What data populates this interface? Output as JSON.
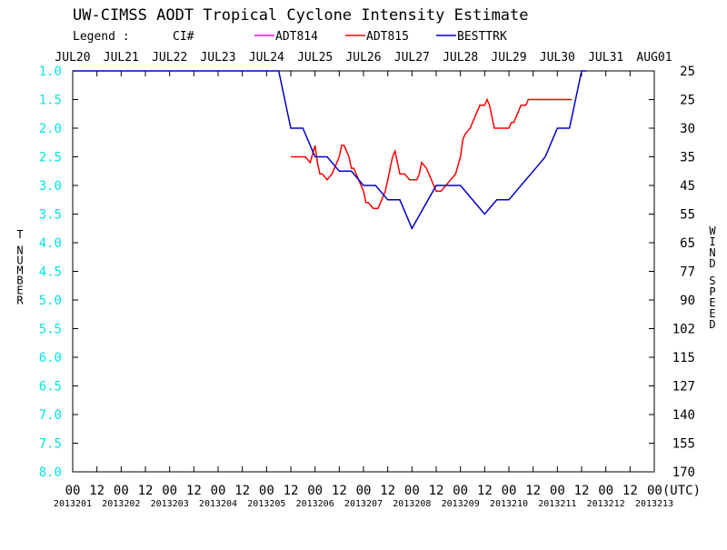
{
  "chart_data": {
    "type": "line",
    "title": "UW-CIMSS AODT Tropical Cyclone Intensity Estimate",
    "legend_label": "Legend :",
    "legend_ci": "CI#",
    "series": [
      {
        "name": "ADT814",
        "color": "#ff00ff",
        "x": [],
        "y": []
      },
      {
        "name": "ADT815",
        "color": "#ff0000",
        "x": [
          4.5,
          4.8,
          4.9,
          5.0,
          5.05,
          5.1,
          5.15,
          5.25,
          5.35,
          5.5,
          5.55,
          5.6,
          5.65,
          5.7,
          5.75,
          5.8,
          5.95,
          6.0,
          6.05,
          6.1,
          6.2,
          6.25,
          6.3,
          6.35,
          6.45,
          6.5,
          6.55,
          6.6,
          6.65,
          6.75,
          6.85,
          6.95,
          7.0,
          7.05,
          7.1,
          7.15,
          7.2,
          7.3,
          7.4,
          7.45,
          7.5,
          7.55,
          7.6,
          7.7,
          7.8,
          7.9,
          8.0,
          8.05,
          8.1,
          8.2,
          8.3,
          8.4,
          8.5,
          8.55,
          8.6,
          8.65,
          8.7,
          8.8,
          8.9,
          9.0,
          9.05,
          9.1,
          9.15,
          9.2,
          9.25,
          9.3,
          9.35,
          9.4,
          9.5,
          9.55,
          9.6,
          9.65,
          9.7,
          9.75,
          9.8,
          9.9,
          10.0,
          10.05,
          10.1,
          10.2,
          10.3
        ],
        "y": [
          2.5,
          2.5,
          2.6,
          2.3,
          2.6,
          2.8,
          2.8,
          2.9,
          2.8,
          2.5,
          2.3,
          2.3,
          2.4,
          2.5,
          2.7,
          2.7,
          3.0,
          3.1,
          3.3,
          3.3,
          3.4,
          3.4,
          3.4,
          3.3,
          3.1,
          2.9,
          2.7,
          2.5,
          2.4,
          2.8,
          2.8,
          2.9,
          2.9,
          2.9,
          2.9,
          2.8,
          2.6,
          2.7,
          2.9,
          3.0,
          3.1,
          3.1,
          3.1,
          3.0,
          2.9,
          2.8,
          2.5,
          2.2,
          2.1,
          2.0,
          1.8,
          1.6,
          1.6,
          1.5,
          1.6,
          1.8,
          2.0,
          2.0,
          2.0,
          2.0,
          1.9,
          1.9,
          1.8,
          1.7,
          1.6,
          1.6,
          1.6,
          1.5,
          1.5,
          1.5,
          1.5,
          1.5,
          1.5,
          1.5,
          1.5,
          1.5,
          1.5,
          1.5,
          1.5,
          1.5,
          1.5
        ]
      },
      {
        "name": "BESTTRK",
        "color": "#0000cc",
        "x": [
          0,
          4.25,
          4.5,
          4.75,
          5.0,
          5.25,
          5.5,
          5.75,
          6.0,
          6.25,
          6.5,
          6.75,
          7.0,
          7.5,
          8.0,
          8.5,
          8.75,
          9.0,
          9.25,
          9.5,
          9.75,
          10.0,
          10.25,
          10.5,
          10.6
        ],
        "y": [
          1.0,
          1.0,
          2.0,
          2.0,
          2.5,
          2.5,
          2.75,
          2.75,
          3.0,
          3.0,
          3.25,
          3.25,
          3.75,
          3.0,
          3.0,
          3.5,
          3.25,
          3.25,
          3.0,
          2.75,
          2.5,
          2.0,
          2.0,
          1.0,
          1.0
        ]
      }
    ],
    "top_dates": [
      "JUL20",
      "JUL21",
      "JUL22",
      "JUL23",
      "JUL24",
      "JUL25",
      "JUL26",
      "JUL27",
      "JUL28",
      "JUL29",
      "JUL30",
      "JUL31",
      "AUG01"
    ],
    "hour_ticks": [
      "00",
      "12",
      "00",
      "12",
      "00",
      "12",
      "00",
      "12",
      "00",
      "12",
      "00",
      "12",
      "00",
      "12",
      "00",
      "12",
      "00",
      "12",
      "00",
      "12",
      "00",
      "12",
      "00",
      "12",
      "00(UTC)"
    ],
    "julian_dates": [
      "2013201",
      "2013202",
      "2013203",
      "2013204",
      "2013205",
      "2013206",
      "2013207",
      "2013208",
      "2013209",
      "2013210",
      "2013211",
      "2013212",
      "2013213"
    ],
    "y_left_ticks": [
      "1.0",
      "1.5",
      "2.0",
      "2.5",
      "3.0",
      "3.5",
      "4.0",
      "4.5",
      "5.0",
      "5.5",
      "6.0",
      "6.5",
      "7.0",
      "7.5",
      "8.0"
    ],
    "y_right_ticks": [
      "25",
      "25",
      "30",
      "35",
      "45",
      "55",
      "65",
      "77",
      "90",
      "102",
      "115",
      "127",
      "140",
      "155",
      "170"
    ],
    "ylabel": "T NUMBER",
    "ylabel_right": "WIND SPEED",
    "ylim": [
      1.0,
      8.0
    ],
    "xlim_days": [
      0,
      12
    ],
    "grid": false,
    "colors": {
      "axis": "#000000",
      "t_number_ticks": "#00e5e5",
      "adt814": "#ff00ff",
      "adt815": "#ff0000",
      "besttrk": "#0000cc"
    }
  }
}
